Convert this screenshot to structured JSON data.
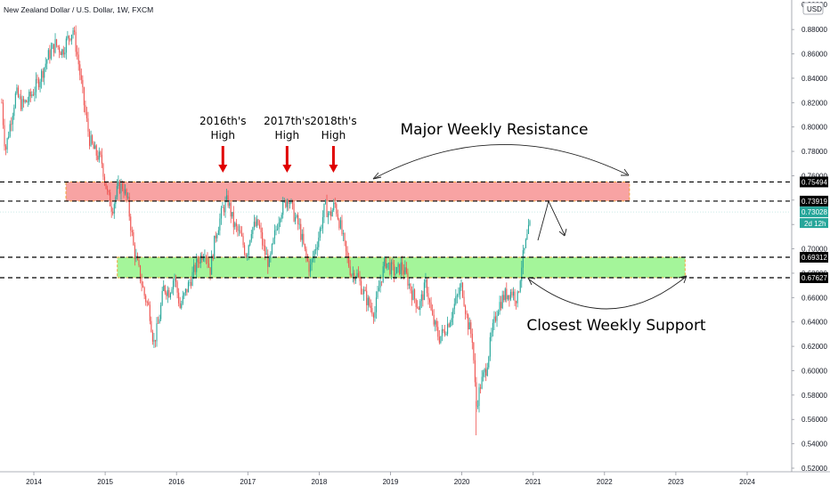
{
  "chart_data": {
    "type": "candlestick",
    "title": "New Zealand Dollar / U.S. Dollar, 1W, FXCM",
    "currency_badge": "USD",
    "x_axis": {
      "ticks": [
        "2014",
        "2015",
        "2016",
        "2017",
        "2018",
        "2019",
        "2020",
        "2021",
        "2022",
        "2023",
        "2024"
      ]
    },
    "y_axis": {
      "range": [
        0.515,
        0.895
      ],
      "ticks": [
        "0.88000",
        "0.86000",
        "0.84000",
        "0.82000",
        "0.80000",
        "0.78000",
        "0.76000",
        "0.74000",
        "0.72000",
        "0.70000",
        "0.68000",
        "0.66000",
        "0.64000",
        "0.62000",
        "0.60000",
        "0.58000",
        "0.56000",
        "0.54000",
        "0.52000"
      ],
      "top_partial_tick": "0.90000"
    },
    "price_path": [
      [
        2013.55,
        0.82
      ],
      [
        2013.6,
        0.78
      ],
      [
        2013.66,
        0.8
      ],
      [
        2013.75,
        0.828
      ],
      [
        2013.83,
        0.818
      ],
      [
        2013.92,
        0.822
      ],
      [
        2014.0,
        0.83
      ],
      [
        2014.1,
        0.842
      ],
      [
        2014.2,
        0.858
      ],
      [
        2014.3,
        0.868
      ],
      [
        2014.4,
        0.862
      ],
      [
        2014.47,
        0.872
      ],
      [
        2014.55,
        0.88
      ],
      [
        2014.62,
        0.855
      ],
      [
        2014.7,
        0.82
      ],
      [
        2014.78,
        0.79
      ],
      [
        2014.85,
        0.78
      ],
      [
        2014.95,
        0.772
      ],
      [
        2015.03,
        0.745
      ],
      [
        2015.1,
        0.733
      ],
      [
        2015.18,
        0.75
      ],
      [
        2015.25,
        0.752
      ],
      [
        2015.32,
        0.737
      ],
      [
        2015.4,
        0.7
      ],
      [
        2015.48,
        0.68
      ],
      [
        2015.55,
        0.662
      ],
      [
        2015.62,
        0.65
      ],
      [
        2015.68,
        0.622
      ],
      [
        2015.75,
        0.64
      ],
      [
        2015.82,
        0.668
      ],
      [
        2015.9,
        0.665
      ],
      [
        2015.97,
        0.678
      ],
      [
        2016.05,
        0.652
      ],
      [
        2016.12,
        0.663
      ],
      [
        2016.2,
        0.675
      ],
      [
        2016.3,
        0.69
      ],
      [
        2016.4,
        0.7
      ],
      [
        2016.47,
        0.682
      ],
      [
        2016.55,
        0.712
      ],
      [
        2016.65,
        0.733
      ],
      [
        2016.72,
        0.74
      ],
      [
        2016.8,
        0.72
      ],
      [
        2016.9,
        0.71
      ],
      [
        2016.98,
        0.695
      ],
      [
        2017.05,
        0.717
      ],
      [
        2017.15,
        0.72
      ],
      [
        2017.22,
        0.7
      ],
      [
        2017.3,
        0.687
      ],
      [
        2017.38,
        0.712
      ],
      [
        2017.45,
        0.73
      ],
      [
        2017.57,
        0.743
      ],
      [
        2017.65,
        0.727
      ],
      [
        2017.72,
        0.718
      ],
      [
        2017.8,
        0.697
      ],
      [
        2017.87,
        0.683
      ],
      [
        2017.93,
        0.697
      ],
      [
        2018.0,
        0.712
      ],
      [
        2018.08,
        0.735
      ],
      [
        2018.15,
        0.727
      ],
      [
        2018.22,
        0.737
      ],
      [
        2018.3,
        0.718
      ],
      [
        2018.38,
        0.695
      ],
      [
        2018.45,
        0.68
      ],
      [
        2018.52,
        0.68
      ],
      [
        2018.6,
        0.667
      ],
      [
        2018.7,
        0.654
      ],
      [
        2018.78,
        0.648
      ],
      [
        2018.85,
        0.672
      ],
      [
        2018.93,
        0.69
      ],
      [
        2019.0,
        0.684
      ],
      [
        2019.08,
        0.68
      ],
      [
        2019.15,
        0.686
      ],
      [
        2019.22,
        0.678
      ],
      [
        2019.3,
        0.664
      ],
      [
        2019.4,
        0.652
      ],
      [
        2019.5,
        0.672
      ],
      [
        2019.58,
        0.644
      ],
      [
        2019.68,
        0.627
      ],
      [
        2019.75,
        0.632
      ],
      [
        2019.83,
        0.642
      ],
      [
        2019.92,
        0.658
      ],
      [
        2020.0,
        0.67
      ],
      [
        2020.08,
        0.64
      ],
      [
        2020.15,
        0.626
      ],
      [
        2020.2,
        0.57
      ],
      [
        2020.26,
        0.588
      ],
      [
        2020.34,
        0.602
      ],
      [
        2020.42,
        0.63
      ],
      [
        2020.5,
        0.652
      ],
      [
        2020.6,
        0.662
      ],
      [
        2020.7,
        0.665
      ],
      [
        2020.78,
        0.659
      ],
      [
        2020.84,
        0.688
      ],
      [
        2020.9,
        0.705
      ],
      [
        2020.97,
        0.723
      ]
    ],
    "zones": [
      {
        "label": "resistance zone",
        "top": 0.7549,
        "bottom": 0.7392,
        "start": 2014.45,
        "end": 2022.35,
        "color": "#f8a3a3"
      },
      {
        "label": "support zone",
        "top": 0.6931,
        "bottom": 0.6763,
        "start": 2015.17,
        "end": 2023.13,
        "color": "#a4f59a"
      }
    ],
    "horizontal_levels": [
      {
        "value": 0.7549,
        "label": "0.75494"
      },
      {
        "value": 0.7392,
        "label": "0.73919"
      },
      {
        "value": 0.6931,
        "label": "0.69312"
      },
      {
        "value": 0.6763,
        "label": "0.67627"
      }
    ],
    "current_price": {
      "value": 0.7303,
      "label": "0.73028",
      "countdown": "2d 12h"
    },
    "annotations": {
      "high_2016": {
        "line1": "2016th's",
        "line2": "High",
        "x": 2016.65
      },
      "high_2017": {
        "line1": "2017th's",
        "line2": "High",
        "x": 2017.55
      },
      "high_2018": {
        "line1": "2018th's",
        "line2": "High",
        "x": 2018.2
      },
      "resistance_label": "Major Weekly Resistance",
      "support_label": "Closest Weekly Support"
    },
    "colors": {
      "up": "#26a69a",
      "down": "#ef5350",
      "arrow": "#e00000",
      "price_label": "#26a69a"
    }
  }
}
